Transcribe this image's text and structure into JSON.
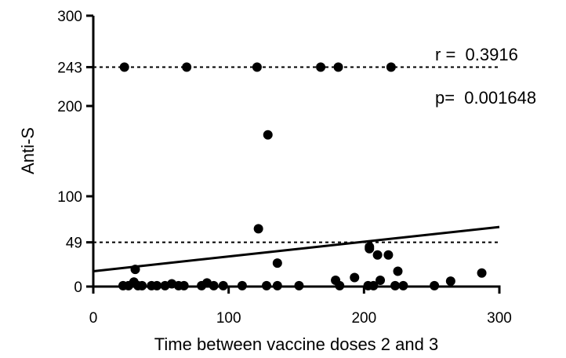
{
  "chart_data": {
    "type": "scatter",
    "xlabel": "Time between vaccine doses 2 and 3",
    "ylabel": "Anti-S",
    "xlim": [
      0,
      300
    ],
    "ylim": [
      0,
      300
    ],
    "x_ticks": [
      0,
      100,
      200,
      300
    ],
    "y_ticks": [
      0,
      49,
      100,
      200,
      243,
      300
    ],
    "reference_lines": [
      243,
      49
    ],
    "regression_line": {
      "x": [
        0,
        300
      ],
      "y": [
        17,
        66
      ]
    },
    "annotations": [
      "r =  0.3916",
      "p=  0.001648"
    ],
    "points": [
      {
        "x": 23,
        "y": 243
      },
      {
        "x": 69,
        "y": 243
      },
      {
        "x": 121,
        "y": 243
      },
      {
        "x": 168,
        "y": 243
      },
      {
        "x": 181,
        "y": 243
      },
      {
        "x": 220,
        "y": 243
      },
      {
        "x": 129,
        "y": 168
      },
      {
        "x": 122,
        "y": 64
      },
      {
        "x": 204,
        "y": 44
      },
      {
        "x": 204,
        "y": 42
      },
      {
        "x": 210,
        "y": 35
      },
      {
        "x": 218,
        "y": 35
      },
      {
        "x": 136,
        "y": 26
      },
      {
        "x": 31,
        "y": 19
      },
      {
        "x": 225,
        "y": 17
      },
      {
        "x": 287,
        "y": 15
      },
      {
        "x": 193,
        "y": 10
      },
      {
        "x": 179,
        "y": 7
      },
      {
        "x": 212,
        "y": 7
      },
      {
        "x": 264,
        "y": 6
      },
      {
        "x": 30,
        "y": 5
      },
      {
        "x": 84,
        "y": 4
      },
      {
        "x": 58,
        "y": 3
      },
      {
        "x": 22,
        "y": 1
      },
      {
        "x": 26,
        "y": 1
      },
      {
        "x": 33,
        "y": 1
      },
      {
        "x": 36,
        "y": 1
      },
      {
        "x": 43,
        "y": 1
      },
      {
        "x": 47,
        "y": 1
      },
      {
        "x": 53,
        "y": 1
      },
      {
        "x": 63,
        "y": 1
      },
      {
        "x": 67,
        "y": 1
      },
      {
        "x": 80,
        "y": 1
      },
      {
        "x": 89,
        "y": 1
      },
      {
        "x": 96,
        "y": 1
      },
      {
        "x": 110,
        "y": 1
      },
      {
        "x": 128,
        "y": 1
      },
      {
        "x": 136,
        "y": 1
      },
      {
        "x": 152,
        "y": 1
      },
      {
        "x": 182,
        "y": 1
      },
      {
        "x": 203,
        "y": 1
      },
      {
        "x": 207,
        "y": 1
      },
      {
        "x": 223,
        "y": 1
      },
      {
        "x": 229,
        "y": 1
      },
      {
        "x": 252,
        "y": 1
      }
    ]
  }
}
